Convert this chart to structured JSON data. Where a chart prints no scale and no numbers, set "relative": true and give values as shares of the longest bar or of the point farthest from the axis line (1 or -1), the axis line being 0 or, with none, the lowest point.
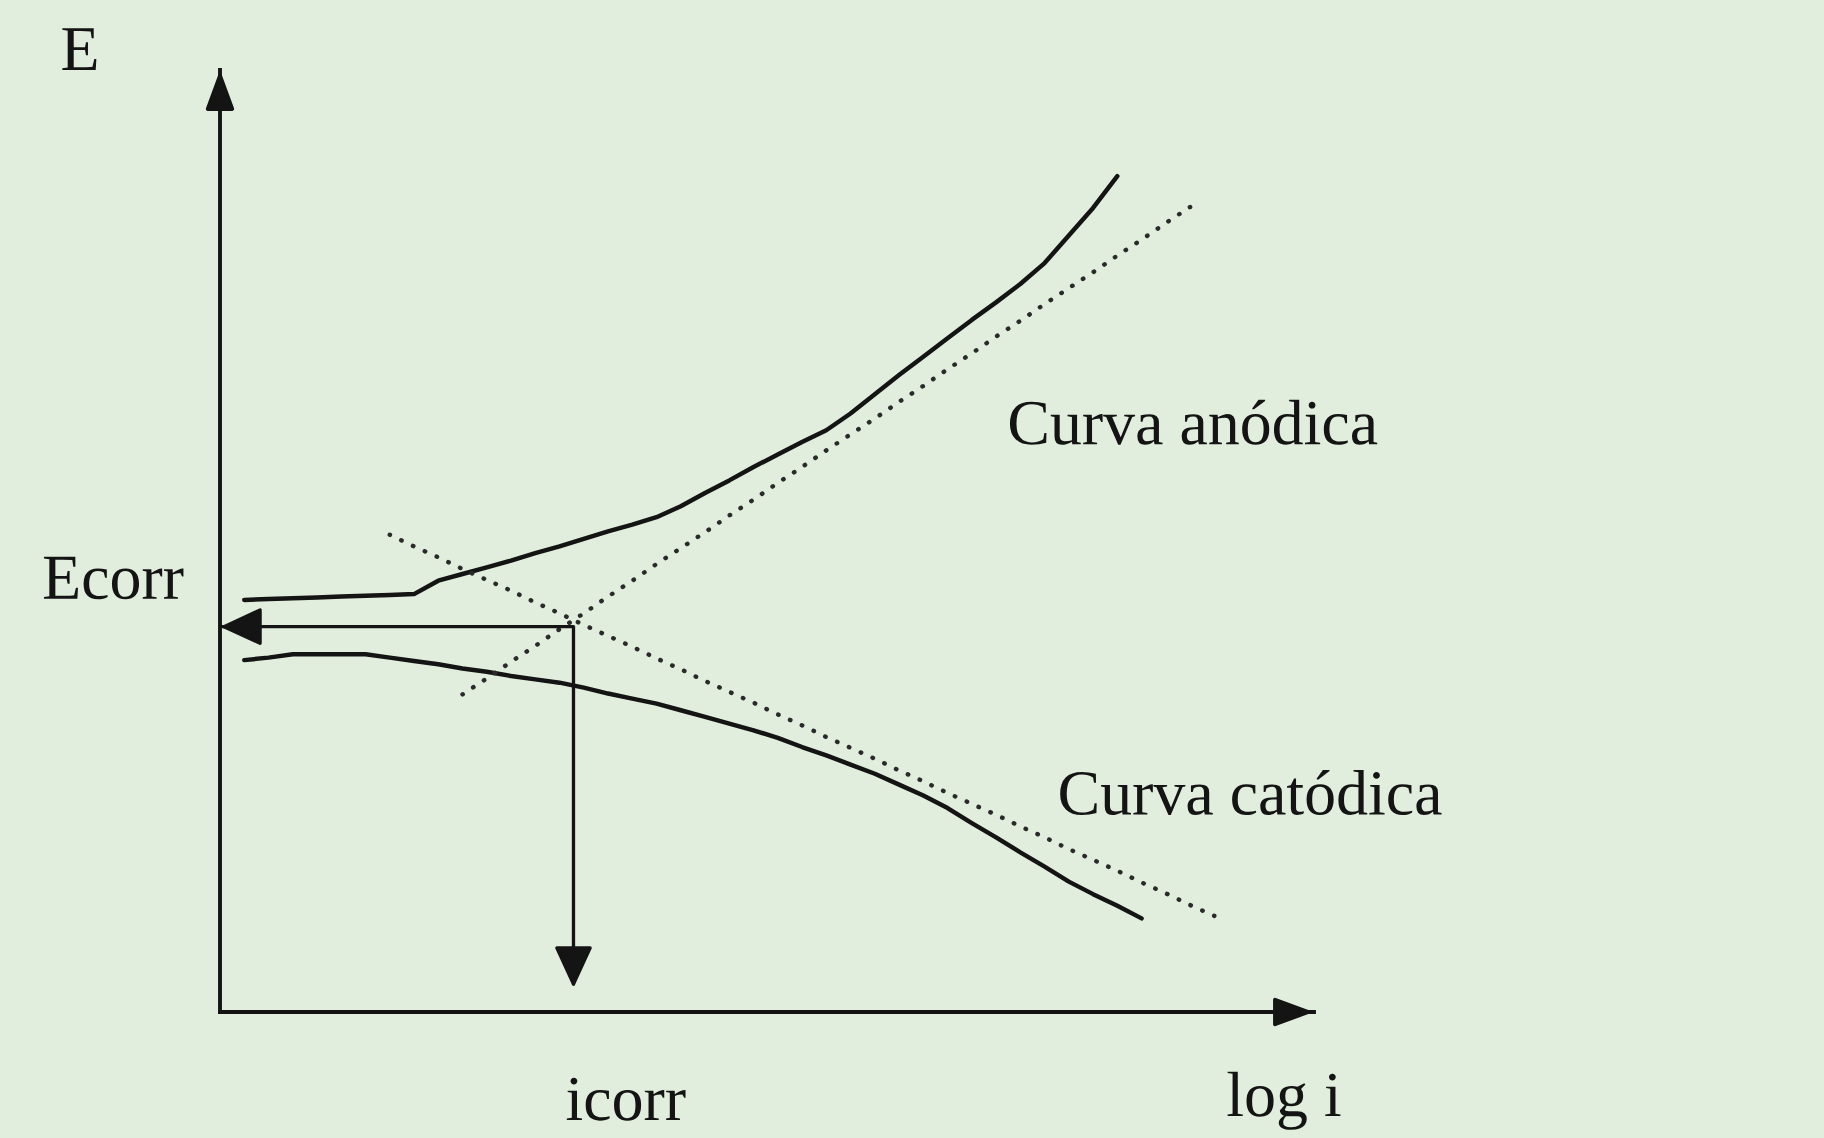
{
  "chart_data": {
    "type": "line",
    "relative": true,
    "xlabel": "log i",
    "ylabel": "E",
    "line_style": "solid",
    "categories": [
      null,
      null,
      null,
      null,
      null,
      null,
      null,
      null,
      null,
      null,
      null,
      null,
      null,
      null,
      null,
      null,
      null,
      null,
      null,
      null,
      null,
      null,
      null,
      null,
      null,
      null,
      null,
      null,
      null,
      null,
      null,
      null,
      null,
      null,
      null,
      null,
      null,
      null,
      null,
      null,
      null
    ],
    "series": [
      {
        "name": "Curva anódica",
        "color": "#141414",
        "values": [
          0.493,
          0.494,
          0.495,
          0.496,
          0.497,
          0.498,
          0.499,
          0.5,
          0.516,
          0.524,
          0.532,
          0.54,
          0.549,
          0.557,
          0.566,
          0.575,
          0.583,
          0.592,
          0.605,
          0.621,
          0.636,
          0.652,
          0.667,
          0.682,
          0.696,
          0.716,
          0.739,
          0.762,
          0.784,
          0.806,
          0.828,
          0.849,
          0.871,
          0.896,
          0.929,
          0.962,
          1,
          null,
          null,
          null,
          null
        ]
      },
      {
        "name": "Curva catódica",
        "color": "#141414",
        "values": [
          0.421,
          0.424,
          0.428,
          0.428,
          0.428,
          0.428,
          0.424,
          0.42,
          0.416,
          0.411,
          0.407,
          0.402,
          0.398,
          0.394,
          0.388,
          0.381,
          0.375,
          0.369,
          0.361,
          0.353,
          0.345,
          0.337,
          0.328,
          0.317,
          0.307,
          0.296,
          0.285,
          0.272,
          0.259,
          0.244,
          0.226,
          0.209,
          0.191,
          0.174,
          0.156,
          0.141,
          0.127,
          0.112,
          null,
          null,
          null
        ]
      },
      {
        "color": "#2a2a2a",
        "line_style": "dotted",
        "values": [
          null,
          null,
          null,
          null,
          null,
          null,
          null,
          null,
          null,
          0.38,
          0.399,
          0.419,
          0.438,
          0.458,
          0.477,
          0.497,
          0.516,
          0.536,
          0.555,
          0.574,
          0.594,
          0.613,
          0.633,
          0.652,
          0.672,
          0.691,
          0.71,
          0.73,
          0.749,
          0.769,
          0.788,
          0.808,
          0.827,
          0.847,
          0.866,
          0.885,
          0.905,
          0.924,
          0.944,
          0.963,
          null
        ]
      },
      {
        "color": "#2a2a2a",
        "line_style": "dotted",
        "values": [
          null,
          null,
          null,
          null,
          null,
          null,
          0.571,
          0.557,
          0.544,
          0.53,
          0.517,
          0.504,
          0.49,
          0.477,
          0.463,
          0.45,
          0.437,
          0.423,
          0.41,
          0.396,
          0.383,
          0.37,
          0.356,
          0.343,
          0.329,
          0.316,
          0.303,
          0.289,
          0.276,
          0.262,
          0.249,
          0.236,
          0.222,
          0.209,
          0.195,
          0.182,
          0.169,
          0.155,
          0.142,
          0.128,
          0.115
        ]
      }
    ],
    "ref_lines": [
      {
        "axis": "y",
        "value": 0.461,
        "label": "Ecorr",
        "color": "#141414"
      }
    ],
    "annotations": [
      "icorr"
    ]
  }
}
